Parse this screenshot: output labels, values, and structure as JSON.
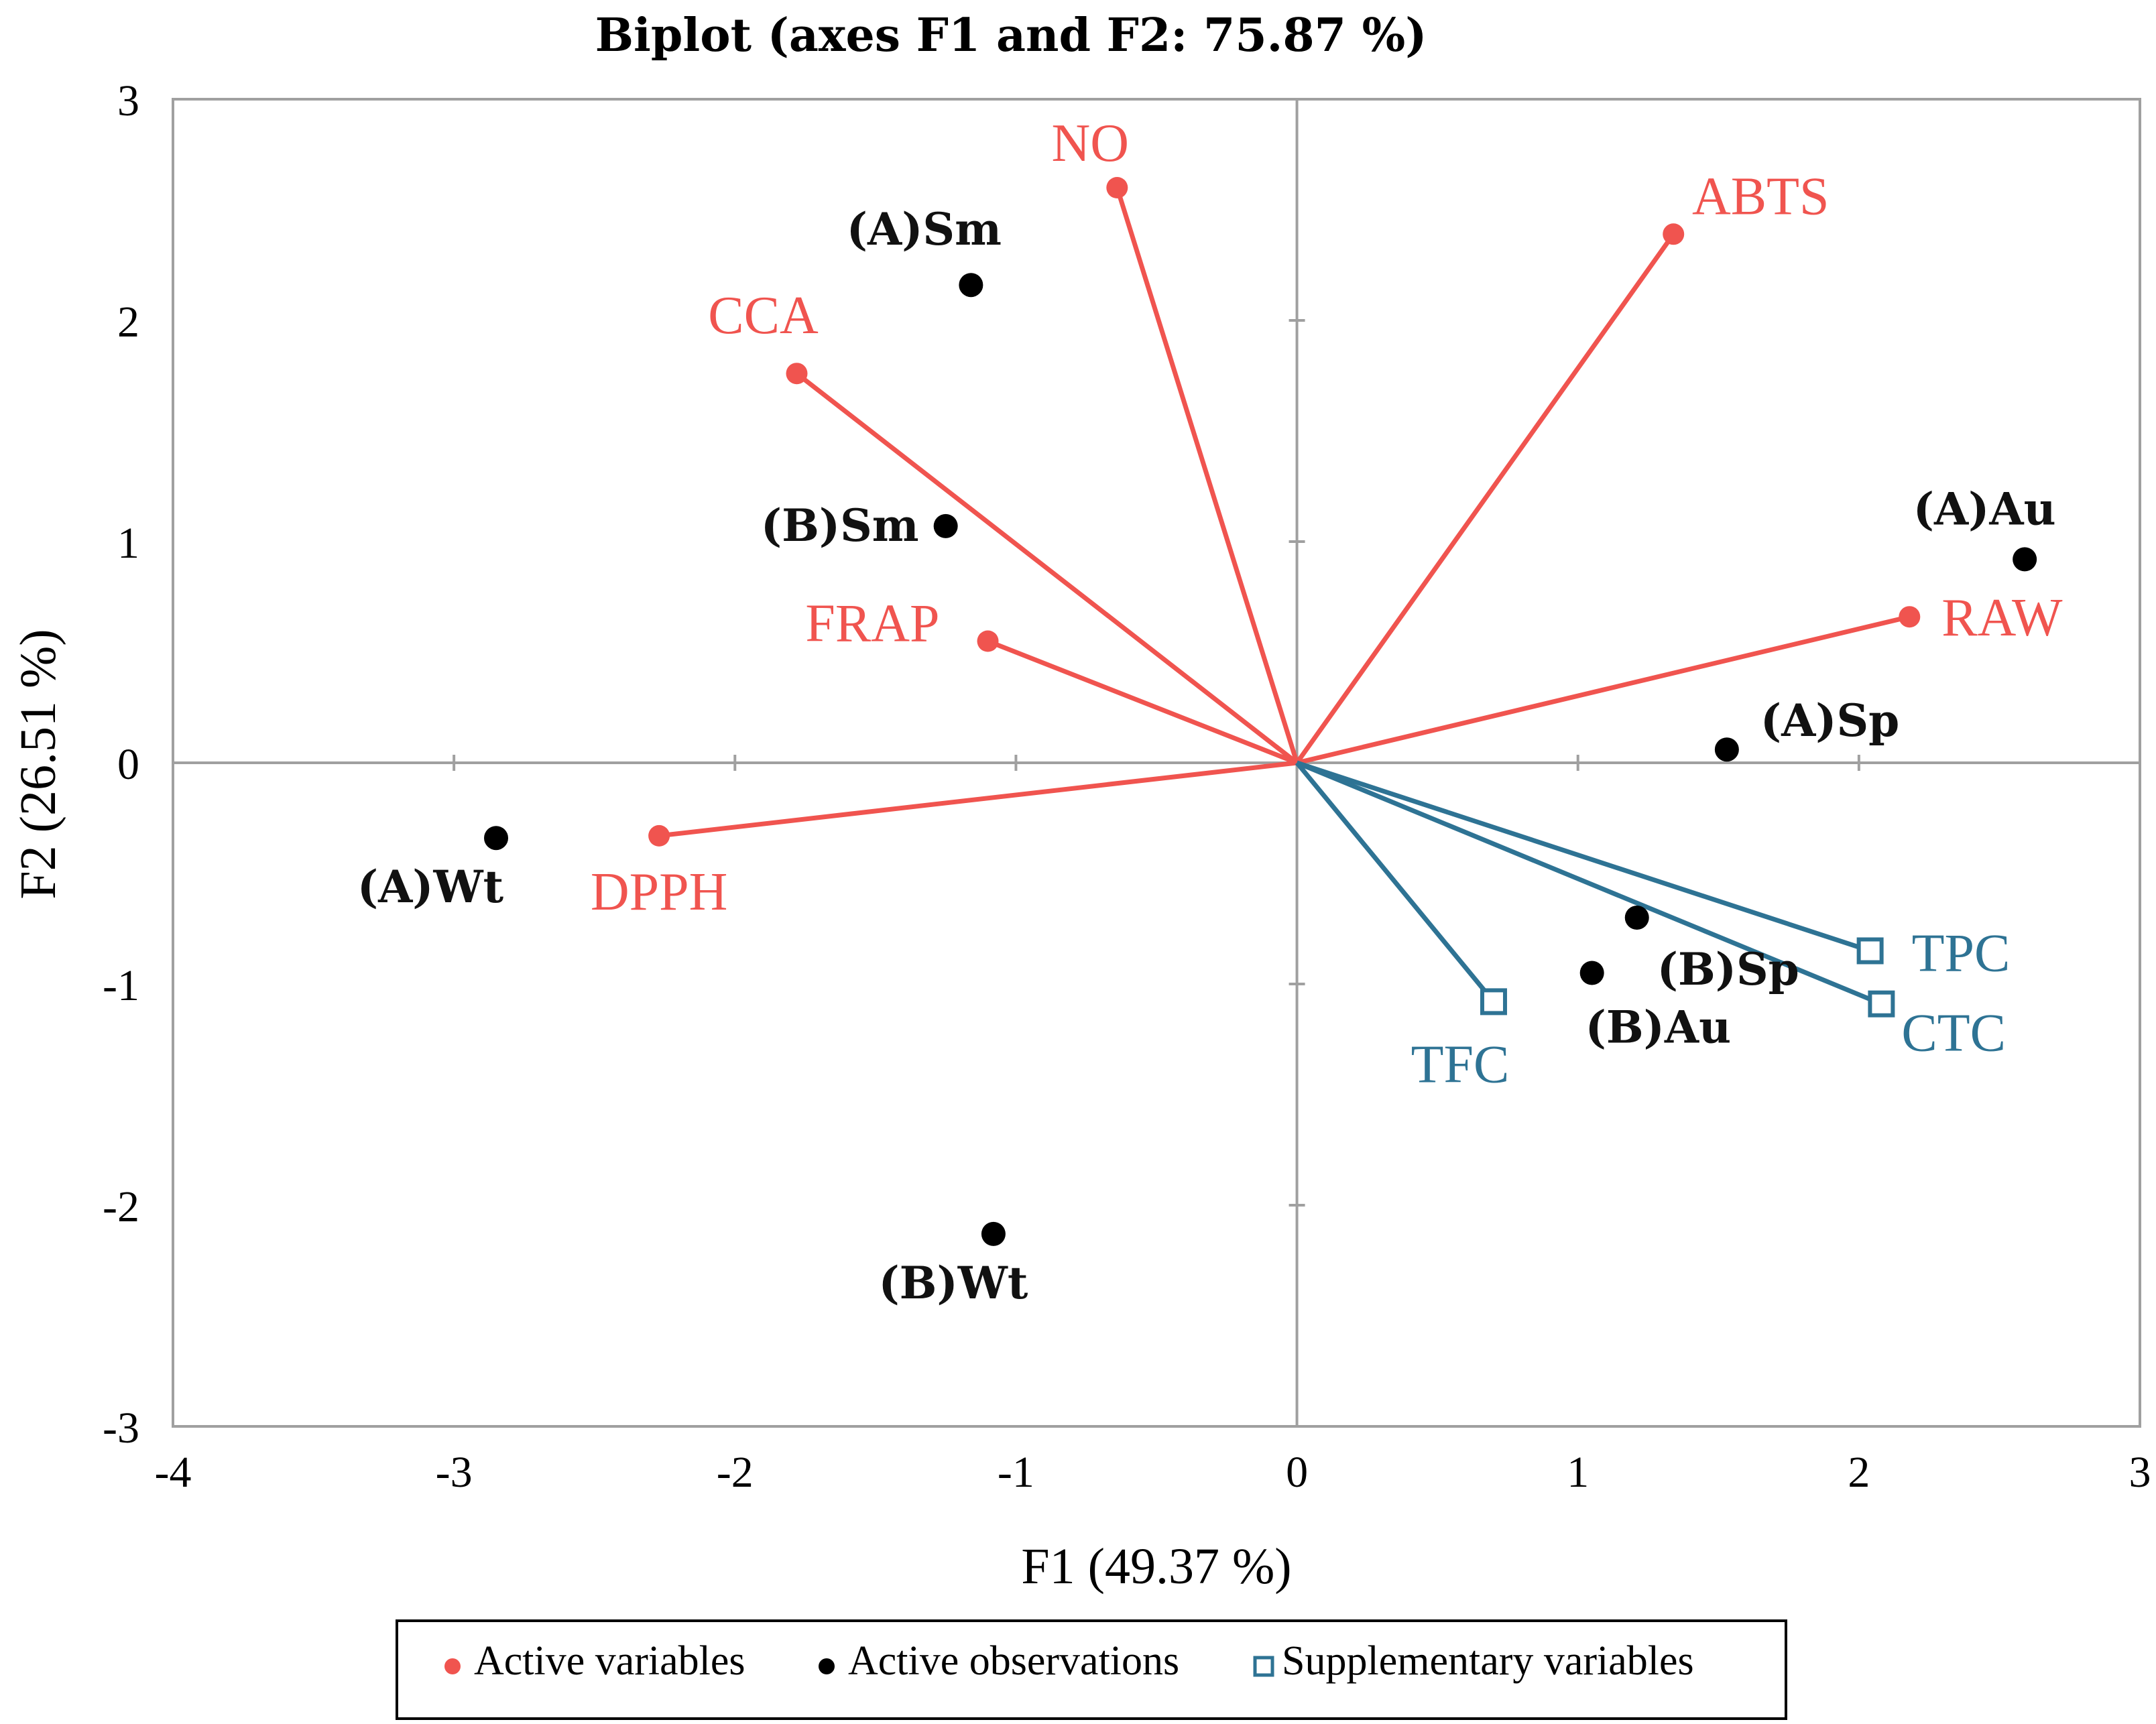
{
  "chart_data": {
    "type": "scatter",
    "subtype": "biplot",
    "title": "Biplot (axes F1 and F2: 75.87 %)",
    "xlabel": "F1 (49.37 %)",
    "ylabel": "F2 (26.51 %)",
    "xlim": [
      -4,
      3
    ],
    "ylim": [
      -3,
      3
    ],
    "xticks": [
      "-4",
      "-3",
      "-2",
      "-1",
      "0",
      "1",
      "2",
      "3"
    ],
    "yticks": [
      "-3",
      "-2",
      "-1",
      "0",
      "1",
      "2",
      "3"
    ],
    "colors": {
      "active_variables": "#f0544f",
      "active_observations": "#000000",
      "supplementary_variables": "#2e7394"
    },
    "active_variables": [
      {
        "label": "NO",
        "x": -0.64,
        "y": 2.6
      },
      {
        "label": "ABTS",
        "x": 1.34,
        "y": 2.39
      },
      {
        "label": "CCA",
        "x": -1.78,
        "y": 1.76
      },
      {
        "label": "FRAP",
        "x": -1.1,
        "y": 0.55
      },
      {
        "label": "RAW",
        "x": 2.18,
        "y": 0.66
      },
      {
        "label": "DPPH",
        "x": -2.27,
        "y": -0.33
      }
    ],
    "active_observations": [
      {
        "label": "(A)Sm",
        "x": -1.16,
        "y": 2.16
      },
      {
        "label": "(B)Sm",
        "x": -1.25,
        "y": 1.07
      },
      {
        "label": "(A)Au",
        "x": 2.59,
        "y": 0.92
      },
      {
        "label": "(A)Sp",
        "x": 1.53,
        "y": 0.06
      },
      {
        "label": "(A)Wt",
        "x": -2.85,
        "y": -0.34
      },
      {
        "label": "(B)Sp",
        "x": 1.21,
        "y": -0.7
      },
      {
        "label": "(B)Au",
        "x": 1.05,
        "y": -0.95
      },
      {
        "label": "(B)Wt",
        "x": -1.08,
        "y": -2.13
      }
    ],
    "supplementary_variables": [
      {
        "label": "TPC",
        "x": 2.04,
        "y": -0.85
      },
      {
        "label": "CTC",
        "x": 2.08,
        "y": -1.09
      },
      {
        "label": "TFC",
        "x": 0.7,
        "y": -1.08
      }
    ],
    "legend": {
      "position": "bottom",
      "items": [
        "Active variables",
        "Active observations",
        "Supplementary variables"
      ]
    }
  }
}
